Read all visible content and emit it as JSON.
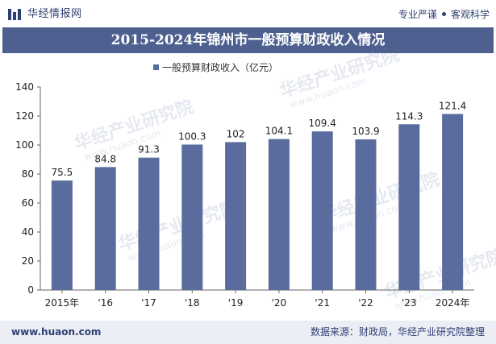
{
  "header": {
    "brand": "华经情报网",
    "tagline_left": "专业严谨",
    "tagline_right": "客观科学"
  },
  "watermarks": [
    "华经产业研究院",
    "www.huaon.com"
  ],
  "footer": {
    "url": "www.huaon.com",
    "source": "数据来源：财政局，华经产业研究院整理"
  },
  "chart_data": {
    "type": "bar",
    "title": "2015-2024年锦州市一般预算财政收入情况",
    "legend": {
      "label": "一般预算财政收入（亿元）",
      "position": "top-center"
    },
    "categories": [
      "2015年",
      "'16",
      "'17",
      "'18",
      "'19",
      "'20",
      "'21",
      "'22",
      "'23",
      "2024年"
    ],
    "series": [
      {
        "name": "一般预算财政收入（亿元）",
        "values": [
          75.5,
          84.8,
          91.3,
          100.3,
          102,
          104.1,
          109.4,
          103.9,
          114.3,
          121.4
        ]
      }
    ],
    "data_labels": [
      "75.5",
      "84.8",
      "91.3",
      "100.3",
      "102",
      "104.1",
      "109.4",
      "103.9",
      "114.3",
      "121.4"
    ],
    "yticks": [
      0,
      20,
      40,
      60,
      80,
      100,
      120,
      140
    ],
    "ylim": [
      0,
      140
    ],
    "grid": false,
    "bar_color": "#5a6c9e"
  }
}
